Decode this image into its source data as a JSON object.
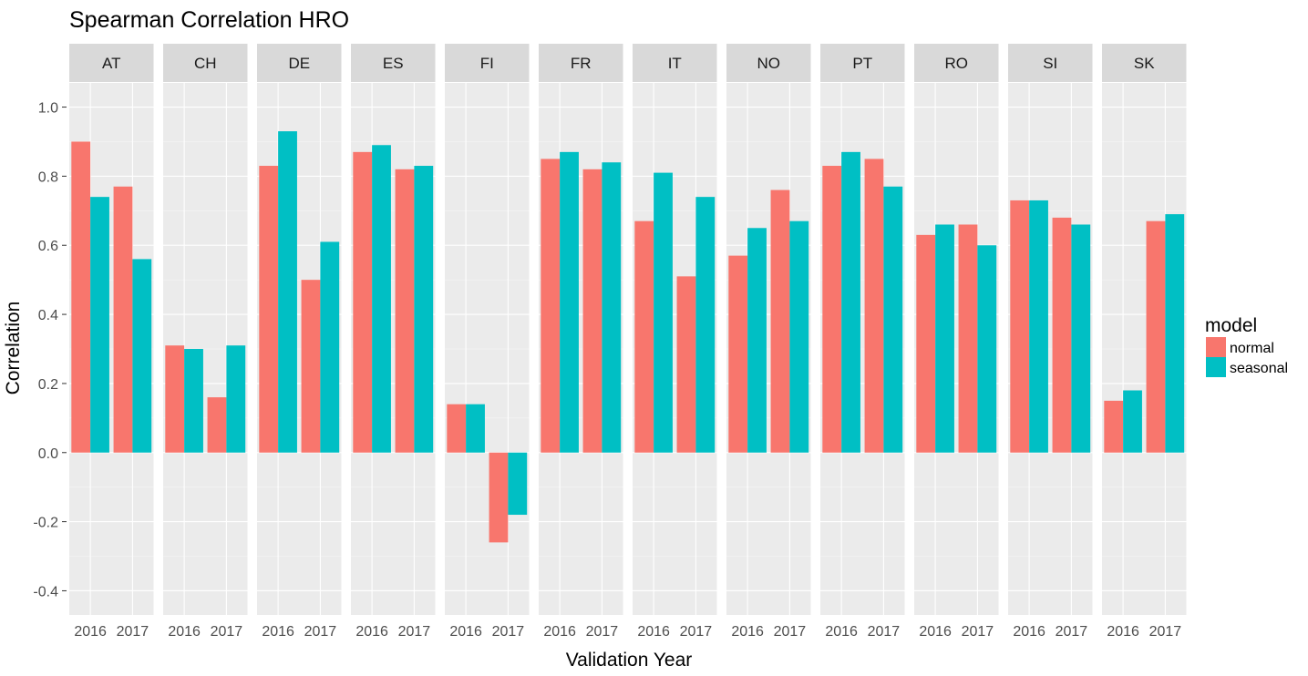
{
  "chart_data": {
    "type": "bar",
    "title": "Spearman Correlation HRO",
    "xlabel": "Validation Year",
    "ylabel": "Correlation",
    "ylim": [
      -0.47,
      1.07
    ],
    "yticks": [
      "-0.4",
      "-0.2",
      "0.0",
      "0.2",
      "0.4",
      "0.6",
      "0.8",
      "1.0"
    ],
    "categories": [
      "2016",
      "2017"
    ],
    "facets": [
      "AT",
      "CH",
      "DE",
      "ES",
      "FI",
      "FR",
      "IT",
      "NO",
      "PT",
      "RO",
      "SI",
      "SK"
    ],
    "legend": {
      "title": "model",
      "position": "right",
      "entries": [
        {
          "label": "normal",
          "color": "#F8766D"
        },
        {
          "label": "seasonal",
          "color": "#00BFC4"
        }
      ]
    },
    "series": [
      {
        "name": "normal",
        "color": "#F8766D",
        "values": {
          "AT": [
            0.9,
            0.77
          ],
          "CH": [
            0.31,
            0.16
          ],
          "DE": [
            0.83,
            0.5
          ],
          "ES": [
            0.87,
            0.82
          ],
          "FI": [
            0.14,
            -0.26
          ],
          "FR": [
            0.85,
            0.82
          ],
          "IT": [
            0.67,
            0.51
          ],
          "NO": [
            0.57,
            0.76
          ],
          "PT": [
            0.83,
            0.85
          ],
          "RO": [
            0.63,
            0.66
          ],
          "SI": [
            0.73,
            0.68
          ],
          "SK": [
            0.15,
            0.67
          ]
        }
      },
      {
        "name": "seasonal",
        "color": "#00BFC4",
        "values": {
          "AT": [
            0.74,
            0.56
          ],
          "CH": [
            0.3,
            0.31
          ],
          "DE": [
            0.93,
            0.61
          ],
          "ES": [
            0.89,
            0.83
          ],
          "FI": [
            0.14,
            -0.18
          ],
          "FR": [
            0.87,
            0.84
          ],
          "IT": [
            0.81,
            0.74
          ],
          "NO": [
            0.65,
            0.67
          ],
          "PT": [
            0.87,
            0.77
          ],
          "RO": [
            0.66,
            0.6
          ],
          "SI": [
            0.73,
            0.66
          ],
          "SK": [
            0.18,
            0.69
          ]
        }
      }
    ],
    "grid": true
  }
}
